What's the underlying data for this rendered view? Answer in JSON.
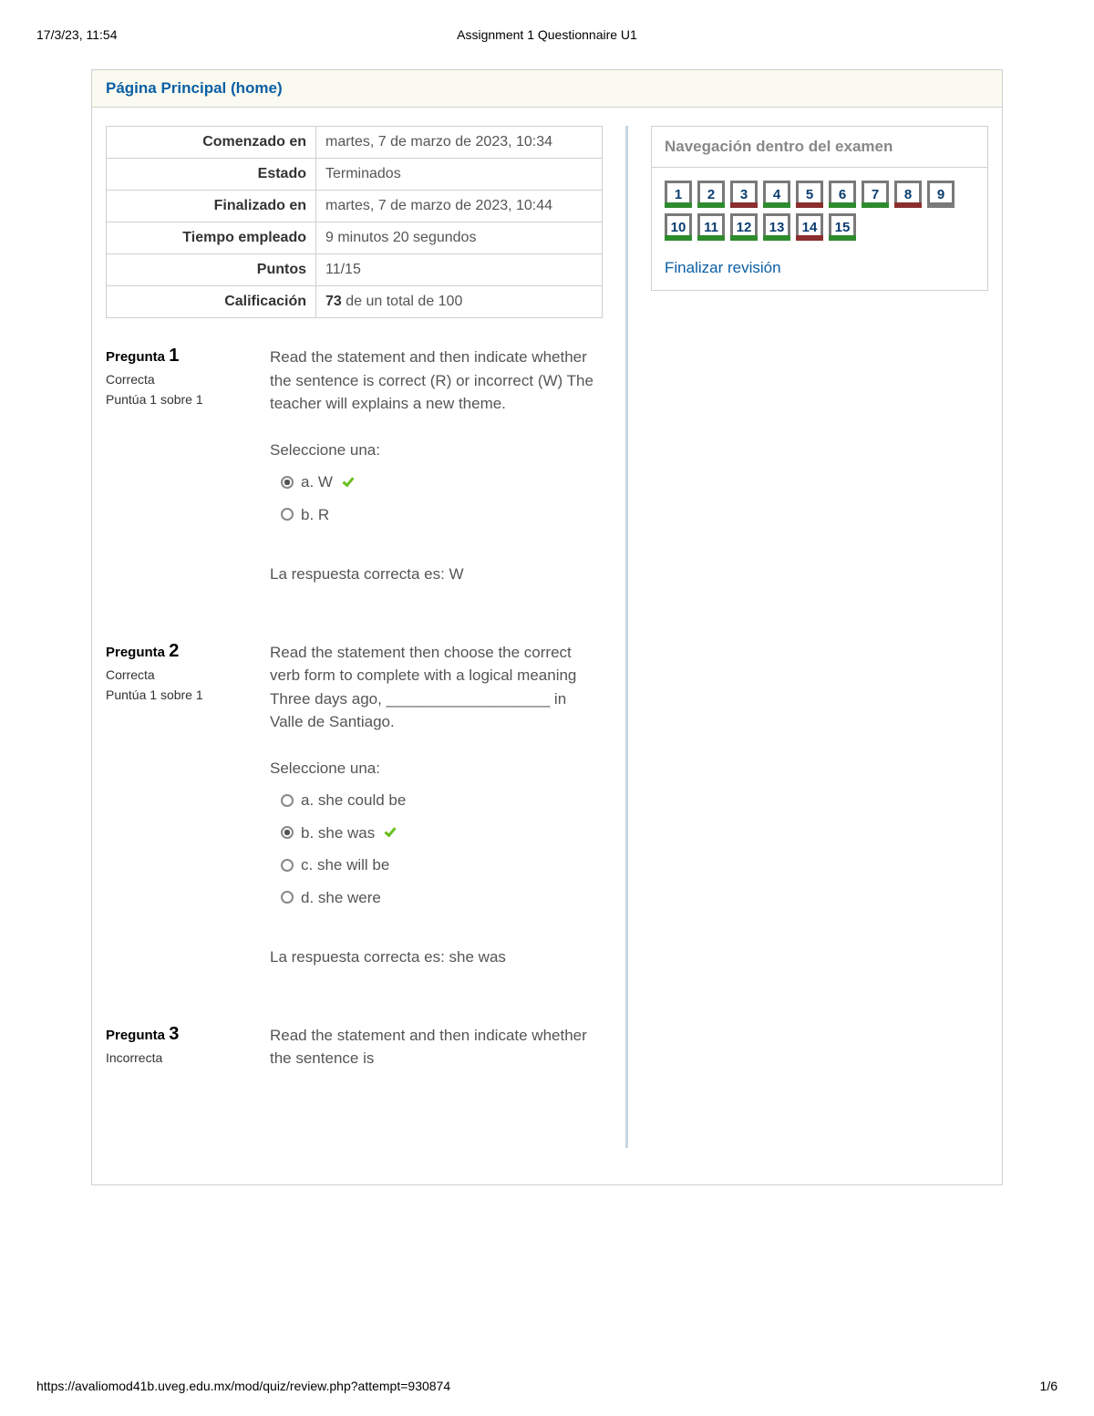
{
  "print_header": {
    "left": "17/3/23, 11:54",
    "center": "Assignment 1 Questionnaire U1"
  },
  "breadcrumb": {
    "label": "Página Principal (home)"
  },
  "summary": {
    "rows": [
      {
        "label": "Comenzado en",
        "value": "martes, 7 de marzo de 2023, 10:34"
      },
      {
        "label": "Estado",
        "value": "Terminados"
      },
      {
        "label": "Finalizado en",
        "value": "martes, 7 de marzo de 2023, 10:44"
      },
      {
        "label": "Tiempo empleado",
        "value": "9 minutos 20 segundos"
      },
      {
        "label": "Puntos",
        "value": "11/15"
      },
      {
        "label": "Calificación",
        "value_strong": "73",
        "value_rest": " de un total de 100"
      }
    ]
  },
  "questions": [
    {
      "title_word": "Pregunta ",
      "number": "1",
      "status": "Correcta",
      "points": "Puntúa 1 sobre 1",
      "text": "Read the statement and then indicate whether the sentence is correct (R) or incorrect (W) The teacher will explains a new theme.",
      "prompt": "Seleccione una:",
      "options": [
        {
          "letter": "a.",
          "text": "W",
          "selected": true,
          "correct": true
        },
        {
          "letter": "b.",
          "text": "R",
          "selected": false,
          "correct": false
        }
      ],
      "feedback": "La respuesta correcta es: W"
    },
    {
      "title_word": "Pregunta ",
      "number": "2",
      "status": "Correcta",
      "points": "Puntúa 1 sobre 1",
      "text": "Read the statement then choose the correct verb form to complete with a logical meaning Three days ago, ___________________ in Valle de Santiago.",
      "prompt": "Seleccione una:",
      "options": [
        {
          "letter": "a.",
          "text": "she could be",
          "selected": false,
          "correct": false
        },
        {
          "letter": "b.",
          "text": "she was",
          "selected": true,
          "correct": true
        },
        {
          "letter": "c.",
          "text": "she will be",
          "selected": false,
          "correct": false
        },
        {
          "letter": "d.",
          "text": "she were",
          "selected": false,
          "correct": false
        }
      ],
      "feedback": "La respuesta correcta es: she was"
    },
    {
      "title_word": "Pregunta ",
      "number": "3",
      "status": "Incorrecta",
      "points": "",
      "text": "Read the statement and then indicate whether the sentence is",
      "prompt": "",
      "options": [],
      "feedback": ""
    }
  ],
  "navigation": {
    "title": "Navegación dentro del examen",
    "items": [
      {
        "n": "1",
        "state": "correct"
      },
      {
        "n": "2",
        "state": "correct"
      },
      {
        "n": "3",
        "state": "incorrect"
      },
      {
        "n": "4",
        "state": "correct"
      },
      {
        "n": "5",
        "state": "incorrect"
      },
      {
        "n": "6",
        "state": "correct"
      },
      {
        "n": "7",
        "state": "correct"
      },
      {
        "n": "8",
        "state": "incorrect"
      },
      {
        "n": "9",
        "state": "neutral"
      },
      {
        "n": "10",
        "state": "correct"
      },
      {
        "n": "11",
        "state": "correct"
      },
      {
        "n": "12",
        "state": "correct"
      },
      {
        "n": "13",
        "state": "correct"
      },
      {
        "n": "14",
        "state": "incorrect"
      },
      {
        "n": "15",
        "state": "correct"
      }
    ],
    "finish_label": "Finalizar revisión"
  },
  "print_footer": {
    "left": "https://avaliomod41b.uveg.edu.mx/mod/quiz/review.php?attempt=930874",
    "right": "1/6"
  },
  "colors": {
    "link": "#0a5fa5",
    "border": "#d0d0d0",
    "breadcrumb_bg": "#fbfaf0",
    "divider": "#c7d6e2",
    "nav_border": "#7a7a7a",
    "nav_text": "#0a3d70",
    "correct": "#2e8b2e",
    "incorrect": "#8b2e2e",
    "check_green": "#6abf1e",
    "body_text": "#555"
  }
}
